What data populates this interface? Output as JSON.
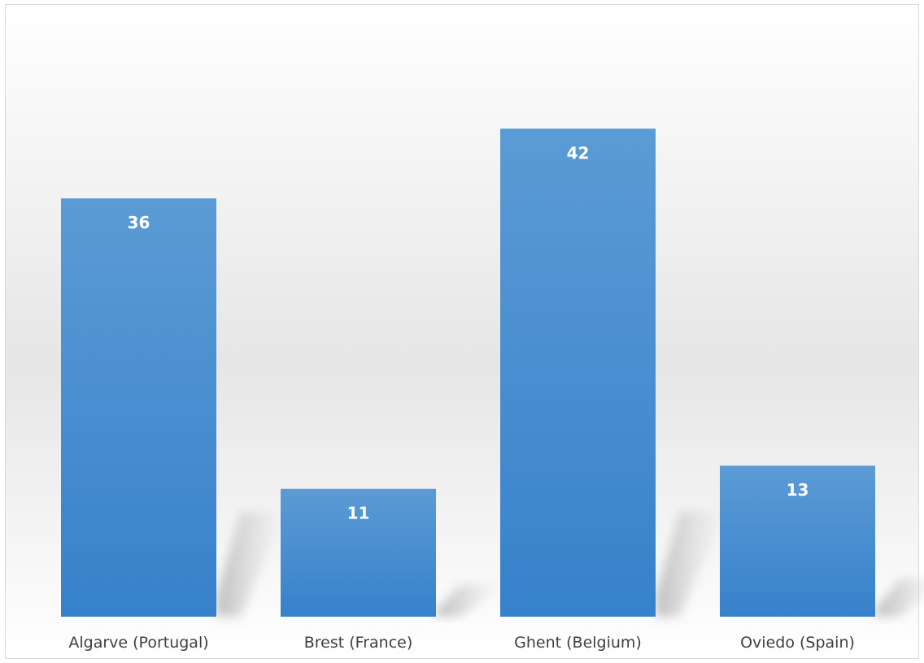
{
  "chart_data": {
    "type": "bar",
    "title": "",
    "xlabel": "",
    "ylabel": "",
    "categories": [
      "Algarve (Portugal)",
      "Brest (France)",
      "Ghent (Belgium)",
      "Oviedo (Spain)"
    ],
    "values": [
      36,
      11,
      42,
      13
    ],
    "value_labels": [
      "36",
      "11",
      "42",
      "13"
    ],
    "ylim": [
      0,
      45
    ],
    "grid": false,
    "legend": "none",
    "bar_color": "#4a8fd4",
    "bar_color_top": "#5b9bd5",
    "bar_color_bottom": "#3781cb"
  }
}
